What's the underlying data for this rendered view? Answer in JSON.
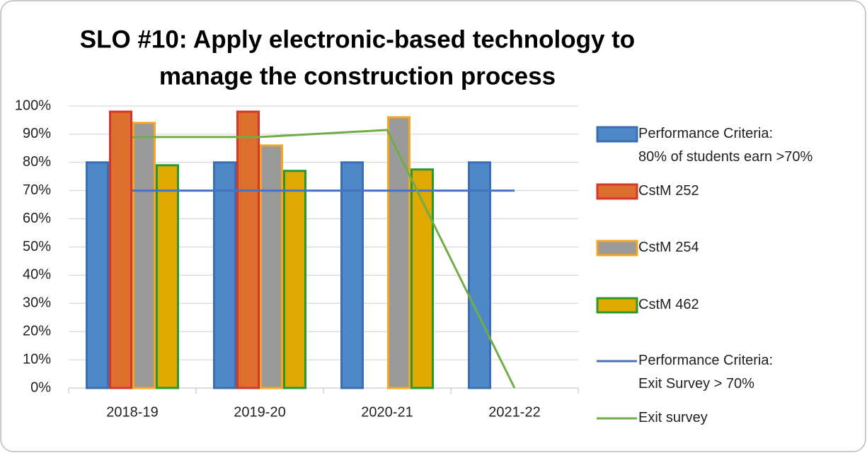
{
  "chart_data": {
    "type": "bar",
    "title_lines": [
      "SLO #10: Apply electronic-based technology to",
      "manage the construction process"
    ],
    "categories": [
      "2018-19",
      "2019-20",
      "2020-21",
      "2021-22"
    ],
    "series": [
      {
        "name": "Performance Criteria:\n80% of students earn >70%",
        "type": "bar",
        "color": "#4f88c6",
        "edge_color": "#3a6eb5",
        "values": [
          80,
          80,
          80,
          80
        ]
      },
      {
        "name": "CstM 252",
        "type": "bar",
        "color": "#dd6f2e",
        "edge_color": "#d6352a",
        "values": [
          98,
          98,
          null,
          null
        ]
      },
      {
        "name": "CstM 254",
        "type": "bar",
        "color": "#9a9a9a",
        "edge_color": "#f5a623",
        "values": [
          94,
          86,
          96,
          null
        ]
      },
      {
        "name": "CstM 462",
        "type": "bar",
        "color": "#e0a800",
        "edge_color": "#279a2f",
        "values": [
          79,
          77,
          77.5,
          null
        ]
      },
      {
        "name": "Performance Criteria:\nExit Survey > 70%",
        "type": "line",
        "color": "#4472c4",
        "values": [
          70,
          70,
          70,
          70
        ]
      },
      {
        "name": "Exit survey",
        "type": "line",
        "color": "#70ad47",
        "values": [
          89,
          89,
          91.5,
          0
        ]
      }
    ],
    "ylim": [
      0,
      100
    ],
    "yticks": [
      {
        "value": 0,
        "label": "0%"
      },
      {
        "value": 10,
        "label": "10%"
      },
      {
        "value": 20,
        "label": "20%"
      },
      {
        "value": 30,
        "label": "30%"
      },
      {
        "value": 40,
        "label": "40%"
      },
      {
        "value": 50,
        "label": "50%"
      },
      {
        "value": 60,
        "label": "60%"
      },
      {
        "value": 70,
        "label": "70%"
      },
      {
        "value": 80,
        "label": "80%"
      },
      {
        "value": 90,
        "label": "90%"
      },
      {
        "value": 100,
        "label": "100%"
      }
    ],
    "grid": true,
    "legend": "right"
  }
}
